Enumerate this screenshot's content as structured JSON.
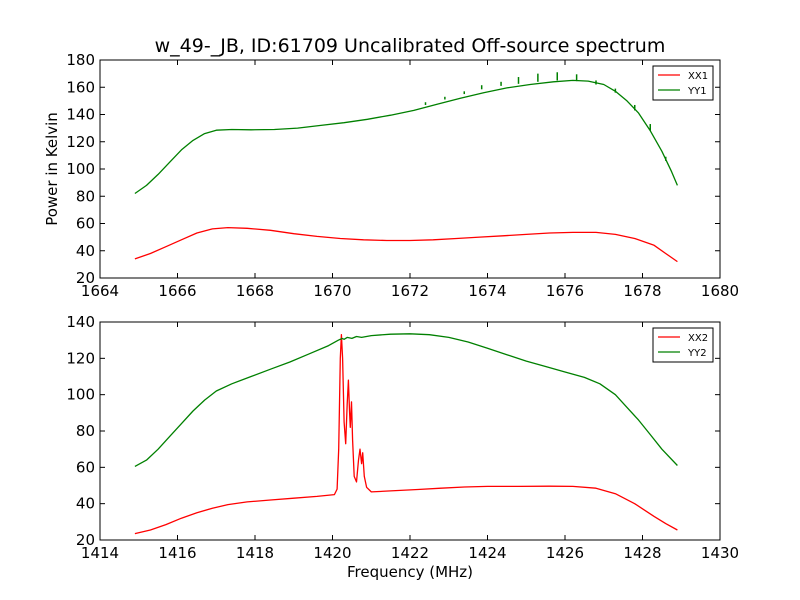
{
  "title": "w_49-_JB, ID:61709 Uncalibrated Off-source spectrum",
  "chart_data": [
    {
      "type": "line",
      "xlim": [
        1664,
        1680
      ],
      "ylim": [
        20,
        180
      ],
      "xticks": [
        1664,
        1666,
        1668,
        1670,
        1672,
        1674,
        1676,
        1678,
        1680
      ],
      "yticks": [
        20,
        40,
        60,
        80,
        100,
        120,
        140,
        160,
        180
      ],
      "xlabel": "",
      "ylabel": "Power in Kelvin",
      "legend": "top-right",
      "series": [
        {
          "name": "XX1",
          "color": "#ff0000",
          "points": [
            [
              1664.9,
              34
            ],
            [
              1665.3,
              38
            ],
            [
              1665.7,
              43
            ],
            [
              1666.1,
              48
            ],
            [
              1666.5,
              53
            ],
            [
              1666.9,
              56
            ],
            [
              1667.3,
              57
            ],
            [
              1667.8,
              56.5
            ],
            [
              1668.4,
              55
            ],
            [
              1669,
              52.5
            ],
            [
              1669.6,
              50.5
            ],
            [
              1670.2,
              49
            ],
            [
              1670.8,
              48
            ],
            [
              1671.4,
              47.5
            ],
            [
              1672,
              47.5
            ],
            [
              1672.6,
              48
            ],
            [
              1673.2,
              49
            ],
            [
              1673.8,
              50
            ],
            [
              1674.4,
              51
            ],
            [
              1675,
              52
            ],
            [
              1675.6,
              53
            ],
            [
              1676.2,
              53.5
            ],
            [
              1676.8,
              53.5
            ],
            [
              1677.3,
              52
            ],
            [
              1677.8,
              49
            ],
            [
              1678.3,
              44
            ],
            [
              1678.6,
              38
            ],
            [
              1678.9,
              32
            ]
          ]
        },
        {
          "name": "YY1",
          "color": "#008000",
          "points": [
            [
              1664.9,
              82
            ],
            [
              1665.2,
              88
            ],
            [
              1665.5,
              96
            ],
            [
              1665.8,
              105
            ],
            [
              1666.1,
              114
            ],
            [
              1666.4,
              121
            ],
            [
              1666.7,
              126
            ],
            [
              1667,
              128.5
            ],
            [
              1667.4,
              129
            ],
            [
              1667.9,
              128.8
            ],
            [
              1668.5,
              129
            ],
            [
              1669.1,
              130
            ],
            [
              1669.7,
              132
            ],
            [
              1670.3,
              134
            ],
            [
              1670.9,
              136.5
            ],
            [
              1671.5,
              139.5
            ],
            [
              1672.1,
              143
            ],
            [
              1672.7,
              147.5
            ],
            [
              1673.3,
              152
            ],
            [
              1673.9,
              156
            ],
            [
              1674.5,
              159.5
            ],
            [
              1675.1,
              162
            ],
            [
              1675.7,
              164
            ],
            [
              1676.2,
              165
            ],
            [
              1676.6,
              164.5
            ],
            [
              1677,
              162
            ],
            [
              1677.3,
              157
            ],
            [
              1677.6,
              150
            ],
            [
              1677.9,
              141
            ],
            [
              1678.2,
              128
            ],
            [
              1678.5,
              113
            ],
            [
              1678.75,
              98
            ],
            [
              1678.9,
              88
            ]
          ]
        }
      ],
      "spikes": [
        {
          "x": 1672.4,
          "y": 147,
          "h": 2
        },
        {
          "x": 1672.9,
          "y": 151,
          "h": 2
        },
        {
          "x": 1673.4,
          "y": 155,
          "h": 2
        },
        {
          "x": 1673.85,
          "y": 158.5,
          "h": 3
        },
        {
          "x": 1674.35,
          "y": 161,
          "h": 3
        },
        {
          "x": 1674.8,
          "y": 162.5,
          "h": 5
        },
        {
          "x": 1675.3,
          "y": 164,
          "h": 6
        },
        {
          "x": 1675.8,
          "y": 165,
          "h": 6
        },
        {
          "x": 1676.3,
          "y": 164.5,
          "h": 5
        },
        {
          "x": 1676.8,
          "y": 162,
          "h": 3
        },
        {
          "x": 1677.3,
          "y": 156,
          "h": 3
        },
        {
          "x": 1677.8,
          "y": 143,
          "h": 4
        },
        {
          "x": 1678.2,
          "y": 128,
          "h": 5
        },
        {
          "x": 1678.6,
          "y": 106,
          "h": 3
        }
      ]
    },
    {
      "type": "line",
      "xlim": [
        1414,
        1430
      ],
      "ylim": [
        20,
        140
      ],
      "xticks": [
        1414,
        1416,
        1418,
        1420,
        1422,
        1424,
        1426,
        1428,
        1430
      ],
      "yticks": [
        20,
        40,
        60,
        80,
        100,
        120,
        140
      ],
      "xlabel": "Frequency (MHz)",
      "ylabel": "",
      "legend": "top-right",
      "series": [
        {
          "name": "XX2",
          "color": "#ff0000",
          "points": [
            [
              1414.9,
              23.5
            ],
            [
              1415.3,
              25.5
            ],
            [
              1415.7,
              28.5
            ],
            [
              1416.1,
              32
            ],
            [
              1416.5,
              35
            ],
            [
              1416.9,
              37.5
            ],
            [
              1417.3,
              39.5
            ],
            [
              1417.8,
              41
            ],
            [
              1418.4,
              42
            ],
            [
              1419,
              43
            ],
            [
              1419.6,
              44
            ],
            [
              1420.05,
              45
            ],
            [
              1420.12,
              48
            ],
            [
              1420.16,
              70
            ],
            [
              1420.2,
              120
            ],
            [
              1420.23,
              133
            ],
            [
              1420.26,
              120
            ],
            [
              1420.3,
              85
            ],
            [
              1420.34,
              73
            ],
            [
              1420.38,
              95
            ],
            [
              1420.41,
              108
            ],
            [
              1420.44,
              90
            ],
            [
              1420.46,
              82
            ],
            [
              1420.49,
              96
            ],
            [
              1420.52,
              75
            ],
            [
              1420.56,
              55
            ],
            [
              1420.62,
              52
            ],
            [
              1420.67,
              64
            ],
            [
              1420.71,
              70
            ],
            [
              1420.75,
              62
            ],
            [
              1420.78,
              68
            ],
            [
              1420.82,
              55
            ],
            [
              1420.88,
              49
            ],
            [
              1421,
              46.5
            ],
            [
              1421.5,
              47
            ],
            [
              1422.2,
              47.8
            ],
            [
              1422.8,
              48.5
            ],
            [
              1423.4,
              49.2
            ],
            [
              1424,
              49.5
            ],
            [
              1424.8,
              49.5
            ],
            [
              1425.6,
              49.6
            ],
            [
              1426.2,
              49.5
            ],
            [
              1426.8,
              48.5
            ],
            [
              1427.3,
              45.5
            ],
            [
              1427.8,
              40
            ],
            [
              1428.3,
              33
            ],
            [
              1428.6,
              29
            ],
            [
              1428.9,
              25.5
            ]
          ]
        },
        {
          "name": "YY2",
          "color": "#008000",
          "points": [
            [
              1414.9,
              60.5
            ],
            [
              1415.2,
              64
            ],
            [
              1415.5,
              70
            ],
            [
              1415.8,
              77
            ],
            [
              1416.1,
              84
            ],
            [
              1416.4,
              91
            ],
            [
              1416.7,
              97
            ],
            [
              1417,
              102
            ],
            [
              1417.4,
              106
            ],
            [
              1417.9,
              110
            ],
            [
              1418.4,
              114
            ],
            [
              1418.9,
              118
            ],
            [
              1419.4,
              122.5
            ],
            [
              1419.9,
              127
            ],
            [
              1420.15,
              130
            ],
            [
              1420.25,
              131
            ],
            [
              1420.3,
              130.5
            ],
            [
              1420.38,
              131.5
            ],
            [
              1420.5,
              131
            ],
            [
              1420.62,
              132
            ],
            [
              1420.75,
              131.5
            ],
            [
              1421,
              132.5
            ],
            [
              1421.5,
              133.3
            ],
            [
              1422,
              133.5
            ],
            [
              1422.5,
              133
            ],
            [
              1423,
              131.5
            ],
            [
              1423.5,
              129
            ],
            [
              1424,
              125.5
            ],
            [
              1424.5,
              122
            ],
            [
              1425,
              118.5
            ],
            [
              1425.5,
              115.5
            ],
            [
              1426,
              112.5
            ],
            [
              1426.5,
              109.5
            ],
            [
              1426.9,
              106
            ],
            [
              1427.3,
              100
            ],
            [
              1427.6,
              93
            ],
            [
              1427.9,
              86
            ],
            [
              1428.2,
              78
            ],
            [
              1428.5,
              70
            ],
            [
              1428.9,
              61
            ]
          ]
        }
      ],
      "spikes": []
    }
  ]
}
